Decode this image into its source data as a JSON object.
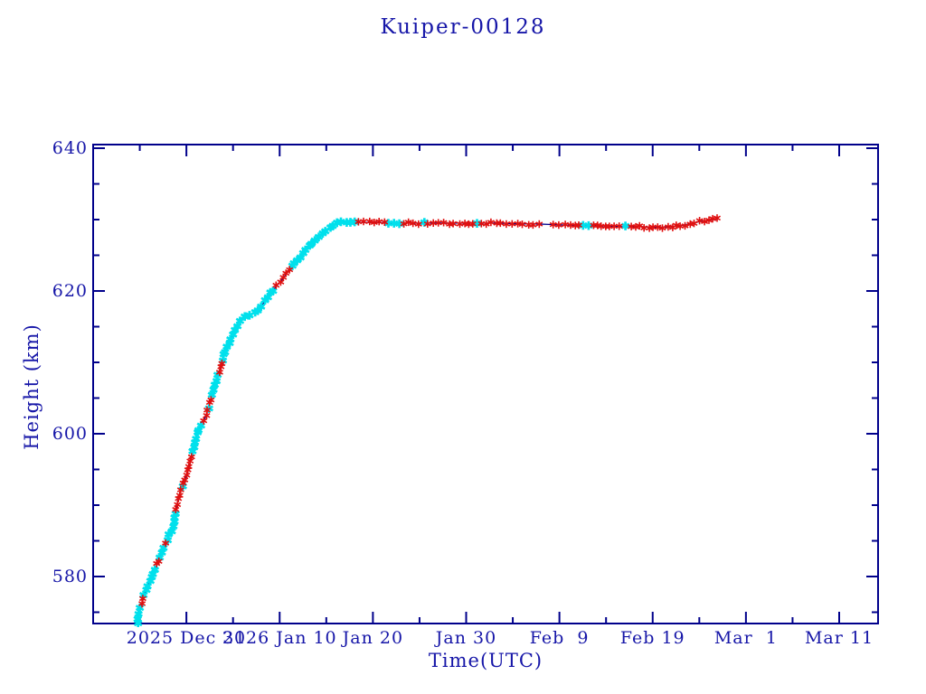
{
  "title": "Kuiper-00128",
  "axes": {
    "xlabel": "Time(UTC)",
    "ylabel": "Height (km)"
  },
  "colors": {
    "background": "#ffffff",
    "axis": "#00008b",
    "text": "#1616a8",
    "line": "#00008b",
    "marker_red": "#df1010",
    "marker_cyan": "#00e0ec"
  },
  "chart_data": {
    "type": "line",
    "title": "Kuiper-00128",
    "xlabel": "Time(UTC)",
    "ylabel": "Height (km)",
    "grid": false,
    "legend": null,
    "x_axis": {
      "units": "days since 2025 Dec 21 00:00 UTC",
      "range_days": [
        0,
        84.2
      ],
      "major_tick_days": [
        0,
        10,
        20,
        30,
        40,
        50,
        60,
        70,
        80
      ],
      "minor_tick_days": [
        5,
        15,
        25,
        35,
        45,
        55,
        65,
        75
      ],
      "tick_labels": [
        {
          "day": 10,
          "label": "2025 Dec 31"
        },
        {
          "day": 20,
          "label": "2026 Jan 10"
        },
        {
          "day": 30,
          "label": "Jan 20"
        },
        {
          "day": 40,
          "label": "Jan 30"
        },
        {
          "day": 50,
          "label": "Feb  9"
        },
        {
          "day": 60,
          "label": "Feb 19"
        },
        {
          "day": 70,
          "label": "Mar  1"
        },
        {
          "day": 80,
          "label": "Mar 11"
        }
      ]
    },
    "y_axis": {
      "range_km": [
        573.4,
        640
      ],
      "major_ticks": [
        580,
        600,
        620,
        640
      ],
      "tick_labels": [
        "580",
        "600",
        "620",
        "640"
      ],
      "minor_tick_step_km": 5
    },
    "series": [
      {
        "name": "orbit-height",
        "line_color": "#00008b",
        "marker_colors": [
          "#df1010",
          "#00e0ec"
        ],
        "marker_style": "asterisk",
        "points_day_km": [
          [
            4.75,
            573.4
          ],
          [
            4.85,
            574.6
          ],
          [
            5.05,
            575.6
          ],
          [
            5.25,
            576.3
          ],
          [
            5.43,
            577.1
          ],
          [
            5.63,
            578.0
          ],
          [
            5.92,
            578.7
          ],
          [
            6.21,
            579.6
          ],
          [
            6.5,
            580.5
          ],
          [
            6.79,
            581.4
          ],
          [
            7.08,
            582.4
          ],
          [
            7.37,
            583.4
          ],
          [
            7.66,
            584.4
          ],
          [
            7.95,
            585.3
          ],
          [
            8.24,
            586.1
          ],
          [
            8.54,
            586.8
          ],
          [
            8.73,
            588.0
          ],
          [
            8.92,
            589.6
          ],
          [
            9.12,
            590.9
          ],
          [
            9.41,
            592.0
          ],
          [
            9.7,
            593.2
          ],
          [
            9.99,
            594.1
          ],
          [
            10.28,
            595.3
          ],
          [
            10.57,
            596.8
          ],
          [
            10.86,
            598.7
          ],
          [
            11.25,
            600.4
          ],
          [
            11.64,
            601.5
          ],
          [
            12.03,
            602.3
          ],
          [
            12.32,
            603.5
          ],
          [
            12.61,
            604.6
          ],
          [
            12.9,
            606.1
          ],
          [
            13.29,
            607.6
          ],
          [
            13.68,
            609.4
          ],
          [
            14.06,
            611.1
          ],
          [
            14.45,
            612.3
          ],
          [
            14.84,
            613.5
          ],
          [
            15.23,
            614.8
          ],
          [
            15.62,
            615.7
          ],
          [
            16.0,
            616.2
          ],
          [
            16.39,
            616.5
          ],
          [
            16.78,
            616.6
          ],
          [
            17.17,
            616.8
          ],
          [
            17.56,
            617.1
          ],
          [
            17.94,
            617.7
          ],
          [
            18.33,
            618.4
          ],
          [
            18.82,
            619.2
          ],
          [
            19.3,
            620.1
          ],
          [
            19.79,
            620.9
          ],
          [
            20.27,
            621.6
          ],
          [
            20.76,
            622.5
          ],
          [
            21.24,
            623.3
          ],
          [
            21.73,
            624.1
          ],
          [
            22.21,
            624.8
          ],
          [
            22.7,
            625.7
          ],
          [
            23.18,
            626.3
          ],
          [
            23.67,
            627.0
          ],
          [
            24.15,
            627.6
          ],
          [
            24.64,
            628.2
          ],
          [
            25.12,
            628.6
          ],
          [
            25.61,
            629.1
          ],
          [
            26.09,
            629.5
          ],
          [
            26.58,
            629.7
          ],
          [
            27.16,
            629.7
          ],
          [
            27.84,
            629.7
          ],
          [
            28.61,
            629.6
          ],
          [
            30.26,
            629.6
          ],
          [
            32.01,
            629.5
          ],
          [
            33.75,
            629.5
          ],
          [
            35.6,
            629.5
          ],
          [
            37.54,
            629.5
          ],
          [
            39.48,
            629.5
          ],
          [
            41.42,
            629.5
          ],
          [
            43.36,
            629.5
          ],
          [
            45.3,
            629.4
          ],
          [
            47.24,
            629.4
          ],
          [
            49.18,
            629.3
          ],
          [
            51.12,
            629.2
          ],
          [
            53.06,
            629.2
          ],
          [
            55.0,
            629.1
          ],
          [
            56.94,
            629.0
          ],
          [
            57.9,
            629.0
          ],
          [
            58.9,
            629.0
          ],
          [
            59.8,
            628.9
          ],
          [
            60.8,
            628.9
          ],
          [
            61.8,
            629.0
          ],
          [
            62.6,
            629.1
          ],
          [
            63.2,
            629.2
          ],
          [
            63.9,
            629.4
          ],
          [
            64.6,
            629.6
          ],
          [
            65.3,
            629.8
          ],
          [
            66.0,
            629.9
          ],
          [
            66.6,
            630.0
          ],
          [
            67.1,
            630.1
          ]
        ]
      }
    ]
  }
}
